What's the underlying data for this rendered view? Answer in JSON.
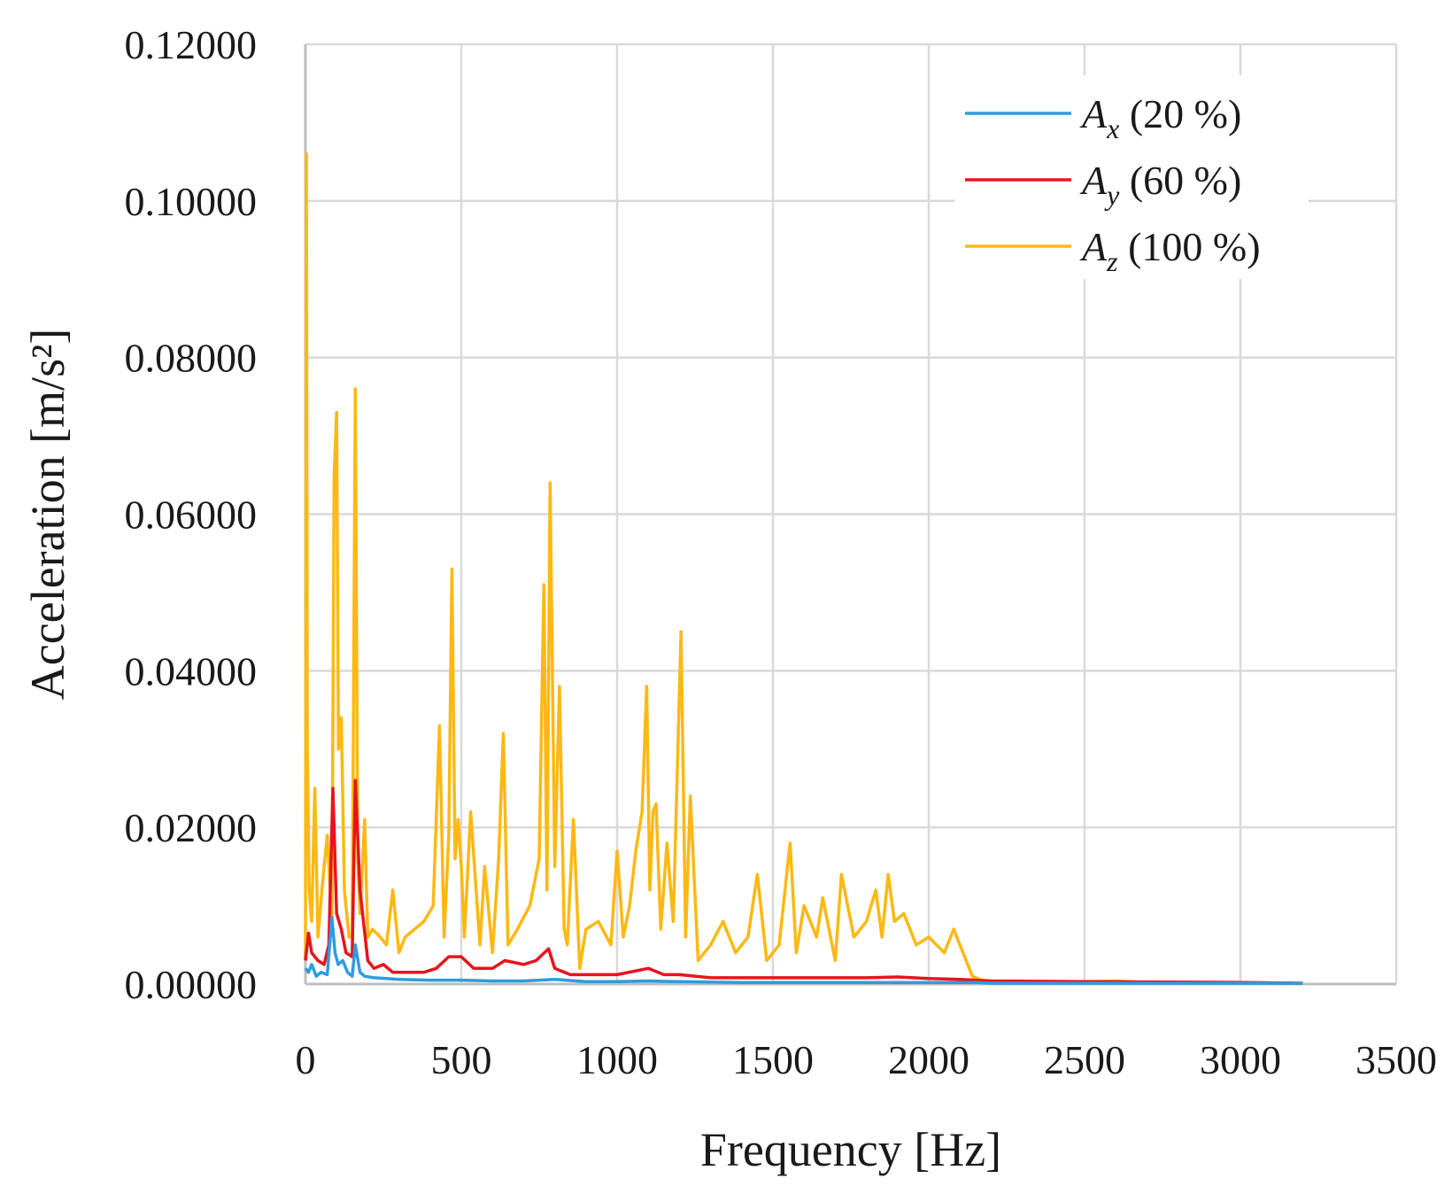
{
  "chart_data": {
    "type": "line",
    "title": "",
    "xlabel": "Frequency [Hz]",
    "ylabel": "Acceleration [m/s²]",
    "xlim": [
      0,
      3500
    ],
    "ylim": [
      0,
      0.12
    ],
    "grid": true,
    "legend_position": "top-right",
    "xticks": [
      "0",
      "500",
      "1000",
      "1500",
      "2000",
      "2500",
      "3000",
      "3500"
    ],
    "yticks": [
      "0.00000",
      "0.02000",
      "0.04000",
      "0.06000",
      "0.08000",
      "0.10000",
      "0.12000"
    ],
    "series": [
      {
        "name": "Ax (20 %)",
        "symbol": "A",
        "subscript": "x",
        "suffix": " (20 %)",
        "color": "#2f9be0",
        "x": [
          0,
          10,
          20,
          35,
          50,
          70,
          85,
          95,
          105,
          120,
          135,
          150,
          160,
          175,
          190,
          220,
          260,
          300,
          400,
          500,
          600,
          700,
          800,
          900,
          1000,
          1100,
          1200,
          1400,
          1600,
          1800,
          2000,
          2150,
          2200,
          2500,
          3000,
          3200
        ],
        "values": [
          0.002,
          0.0015,
          0.0025,
          0.001,
          0.0015,
          0.0012,
          0.0085,
          0.004,
          0.0025,
          0.003,
          0.0015,
          0.001,
          0.005,
          0.0015,
          0.001,
          0.0008,
          0.0007,
          0.0006,
          0.0005,
          0.0005,
          0.0004,
          0.0004,
          0.0006,
          0.0003,
          0.0003,
          0.0004,
          0.0003,
          0.0002,
          0.0002,
          0.0002,
          0.0002,
          0.0002,
          0.0001,
          0.0001,
          0.0001,
          0.0001
        ]
      },
      {
        "name": "Ay (60 %)",
        "symbol": "A",
        "subscript": "y",
        "suffix": " (60 %)",
        "color": "#e8141c",
        "x": [
          0,
          10,
          20,
          40,
          60,
          75,
          88,
          100,
          115,
          130,
          150,
          160,
          175,
          200,
          220,
          250,
          280,
          320,
          380,
          420,
          460,
          500,
          540,
          600,
          640,
          700,
          740,
          780,
          800,
          850,
          900,
          1000,
          1100,
          1150,
          1200,
          1300,
          1400,
          1600,
          1800,
          1900,
          2000,
          2100,
          2200,
          2500,
          3000,
          3200
        ],
        "values": [
          0.003,
          0.0065,
          0.004,
          0.003,
          0.0025,
          0.005,
          0.025,
          0.009,
          0.007,
          0.004,
          0.0035,
          0.026,
          0.012,
          0.003,
          0.002,
          0.0025,
          0.0015,
          0.0015,
          0.0015,
          0.002,
          0.0035,
          0.0035,
          0.002,
          0.002,
          0.003,
          0.0025,
          0.003,
          0.0045,
          0.002,
          0.0012,
          0.0012,
          0.0012,
          0.002,
          0.0012,
          0.0012,
          0.0008,
          0.0008,
          0.0008,
          0.0008,
          0.0009,
          0.0007,
          0.0006,
          0.0004,
          0.0003,
          0.0002,
          0.0001
        ]
      },
      {
        "name": "Az (100 %)",
        "symbol": "A",
        "subscript": "z",
        "suffix": " (100 %)",
        "color": "#fdb813",
        "x": [
          0,
          3,
          6,
          12,
          20,
          30,
          40,
          55,
          70,
          85,
          92,
          100,
          106,
          115,
          125,
          140,
          150,
          160,
          168,
          175,
          190,
          200,
          215,
          240,
          260,
          280,
          300,
          320,
          350,
          380,
          410,
          430,
          445,
          460,
          470,
          480,
          490,
          500,
          510,
          530,
          560,
          575,
          600,
          620,
          635,
          650,
          680,
          720,
          750,
          765,
          775,
          785,
          800,
          815,
          830,
          840,
          860,
          880,
          900,
          940,
          980,
          1000,
          1020,
          1040,
          1060,
          1080,
          1095,
          1105,
          1115,
          1125,
          1140,
          1160,
          1180,
          1205,
          1220,
          1235,
          1260,
          1300,
          1340,
          1380,
          1420,
          1450,
          1480,
          1520,
          1555,
          1575,
          1600,
          1640,
          1660,
          1700,
          1720,
          1760,
          1800,
          1830,
          1850,
          1870,
          1890,
          1920,
          1960,
          2000,
          2050,
          2080,
          2100,
          2140,
          2170,
          2200,
          2300,
          2500,
          2600,
          2700,
          3000,
          3200
        ],
        "values": [
          0.003,
          0.106,
          0.03,
          0.012,
          0.008,
          0.025,
          0.006,
          0.013,
          0.019,
          0.008,
          0.065,
          0.073,
          0.03,
          0.034,
          0.012,
          0.006,
          0.006,
          0.076,
          0.016,
          0.009,
          0.021,
          0.006,
          0.007,
          0.006,
          0.005,
          0.012,
          0.004,
          0.006,
          0.007,
          0.008,
          0.01,
          0.033,
          0.006,
          0.019,
          0.053,
          0.016,
          0.021,
          0.015,
          0.006,
          0.022,
          0.005,
          0.015,
          0.004,
          0.016,
          0.032,
          0.005,
          0.007,
          0.01,
          0.016,
          0.051,
          0.012,
          0.064,
          0.015,
          0.038,
          0.007,
          0.005,
          0.021,
          0.002,
          0.007,
          0.008,
          0.005,
          0.017,
          0.006,
          0.01,
          0.017,
          0.022,
          0.038,
          0.012,
          0.022,
          0.023,
          0.007,
          0.018,
          0.008,
          0.045,
          0.006,
          0.024,
          0.003,
          0.005,
          0.008,
          0.004,
          0.006,
          0.014,
          0.003,
          0.005,
          0.018,
          0.004,
          0.01,
          0.006,
          0.011,
          0.003,
          0.014,
          0.006,
          0.008,
          0.012,
          0.006,
          0.014,
          0.008,
          0.009,
          0.005,
          0.006,
          0.004,
          0.007,
          0.005,
          0.001,
          0.0005,
          0.0004,
          0.0003,
          0.0003,
          0.0004,
          0.0002,
          0.0002,
          0.0001
        ]
      }
    ]
  }
}
